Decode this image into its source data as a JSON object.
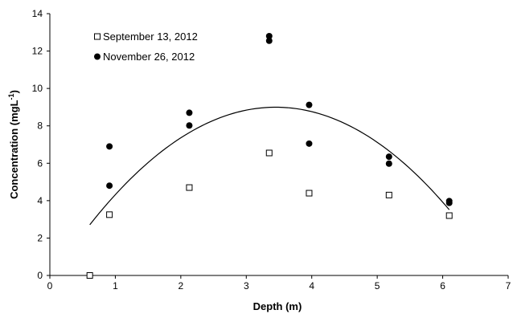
{
  "chart_data": {
    "type": "scatter",
    "title": "",
    "xlabel": "Depth (m)",
    "ylabel": "Concentration (mgL",
    "ylabel_superscript": "-1",
    "ylabel_suffix": ")",
    "xlim": [
      0,
      7
    ],
    "ylim": [
      0,
      14
    ],
    "x_ticks": [
      0,
      1,
      2,
      3,
      4,
      5,
      6,
      7
    ],
    "y_ticks": [
      0,
      2,
      4,
      6,
      8,
      10,
      12,
      14
    ],
    "grid": false,
    "legend_position": "top-left",
    "series": [
      {
        "name": "September 13, 2012",
        "marker": "open-square",
        "color": "#000000",
        "points": [
          [
            0.61,
            0.0
          ],
          [
            0.91,
            3.25
          ],
          [
            2.13,
            4.7
          ],
          [
            3.35,
            6.55
          ],
          [
            3.96,
            4.4
          ],
          [
            5.18,
            4.3
          ],
          [
            6.1,
            3.2
          ]
        ]
      },
      {
        "name": "November 26, 2012",
        "marker": "filled-circle",
        "color": "#000000",
        "points": [
          [
            0.91,
            6.9
          ],
          [
            0.91,
            4.8
          ],
          [
            2.13,
            8.7
          ],
          [
            2.13,
            8.02
          ],
          [
            3.35,
            12.8
          ],
          [
            3.35,
            12.55
          ],
          [
            3.96,
            9.12
          ],
          [
            3.96,
            7.05
          ],
          [
            5.18,
            6.35
          ],
          [
            5.18,
            5.98
          ],
          [
            6.1,
            3.98
          ],
          [
            6.1,
            3.88
          ]
        ]
      }
    ],
    "trendline": {
      "type": "polynomial-2",
      "coefficients": [
        -0.78,
        5.38,
        -0.28
      ],
      "x_range": [
        0.61,
        6.1
      ],
      "color": "#000000"
    }
  }
}
